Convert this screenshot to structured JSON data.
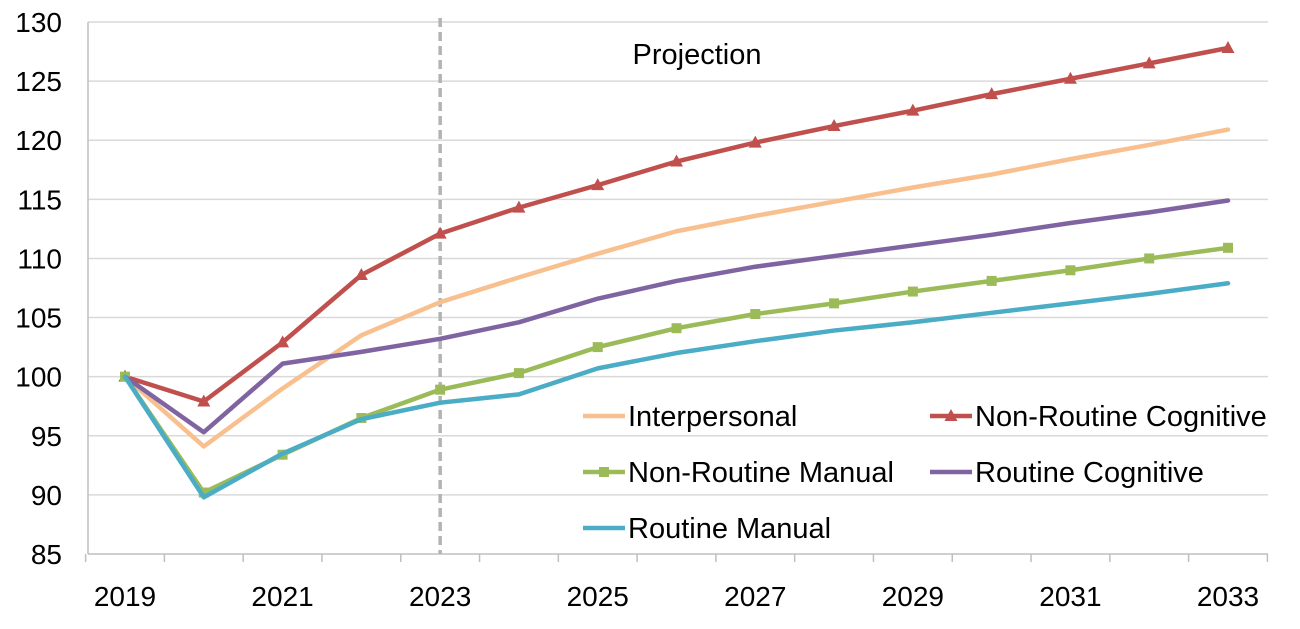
{
  "chart_data": {
    "type": "line",
    "title": "",
    "xlabel": "",
    "ylabel": "",
    "x": [
      2019,
      2020,
      2021,
      2022,
      2023,
      2024,
      2025,
      2026,
      2027,
      2028,
      2029,
      2030,
      2031,
      2032,
      2033
    ],
    "x_tick_labels": [
      "2019",
      "2021",
      "2023",
      "2025",
      "2027",
      "2029",
      "2031",
      "2033"
    ],
    "ylim": [
      85,
      130
    ],
    "y_ticks": [
      85,
      90,
      95,
      100,
      105,
      110,
      115,
      120,
      125,
      130
    ],
    "grid": "horizontal",
    "legend_position": "bottom-right",
    "annotation": {
      "text": "Projection",
      "divider_x": 2023
    },
    "series": [
      {
        "name": "Interpersonal",
        "color": "#F9C08F",
        "marker": "none",
        "values": [
          100,
          94.1,
          99.0,
          103.5,
          106.3,
          108.4,
          110.4,
          112.3,
          113.6,
          114.8,
          116.0,
          117.1,
          118.4,
          119.6,
          120.9
        ]
      },
      {
        "name": "Non-Routine Cognitive",
        "color": "#C0504D",
        "marker": "triangle",
        "values": [
          100,
          97.9,
          102.9,
          108.6,
          112.1,
          114.3,
          116.2,
          118.2,
          119.8,
          121.2,
          122.5,
          123.9,
          125.2,
          126.5,
          127.8
        ]
      },
      {
        "name": "Non-Routine Manual",
        "color": "#9BBB59",
        "marker": "square",
        "values": [
          100,
          90.2,
          93.4,
          96.5,
          98.9,
          100.3,
          102.5,
          104.1,
          105.3,
          106.2,
          107.2,
          108.1,
          109.0,
          110.0,
          110.9
        ]
      },
      {
        "name": "Routine Cognitive",
        "color": "#8064A2",
        "marker": "none",
        "values": [
          100,
          95.3,
          101.1,
          102.1,
          103.2,
          104.6,
          106.6,
          108.1,
          109.3,
          110.2,
          111.1,
          112.0,
          113.0,
          113.9,
          114.9
        ]
      },
      {
        "name": "Routine Manual",
        "color": "#4BACC6",
        "marker": "none",
        "values": [
          100,
          89.8,
          93.5,
          96.4,
          97.8,
          98.5,
          100.7,
          102.0,
          103.0,
          103.9,
          104.6,
          105.4,
          106.2,
          107.0,
          107.9
        ]
      }
    ]
  }
}
